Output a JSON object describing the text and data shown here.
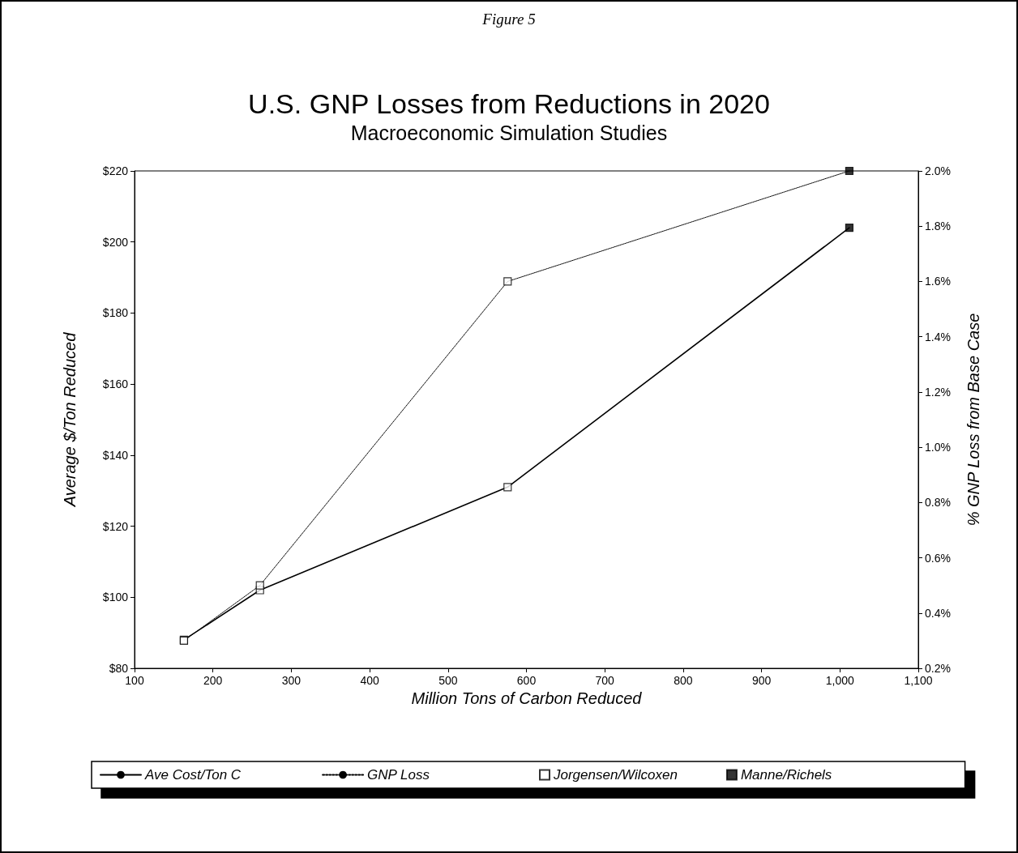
{
  "chart_data": {
    "type": "line",
    "title": "U.S. GNP Losses from Reductions in 2020",
    "subtitle": "Macroeconomic Simulation Studies",
    "annotations": [
      "Figure 5"
    ],
    "xlabel": "Million Tons of Carbon Reduced",
    "ylabel": "Average $/Ton Reduced",
    "y2label": "% GNP Loss from Base Case",
    "xlim": [
      100,
      1100
    ],
    "xticks": [
      100,
      200,
      300,
      400,
      500,
      600,
      700,
      800,
      900,
      {
        "value": 1000,
        "label": "1,000"
      },
      {
        "value": 1100,
        "label": "1,100"
      }
    ],
    "ylim": [
      80,
      220
    ],
    "yticks": [
      {
        "value": 80,
        "label": "$80"
      },
      {
        "value": 100,
        "label": "$100"
      },
      {
        "value": 120,
        "label": "$120"
      },
      {
        "value": 140,
        "label": "$140"
      },
      {
        "value": 160,
        "label": "$160"
      },
      {
        "value": 180,
        "label": "$180"
      },
      {
        "value": 200,
        "label": "$200"
      },
      {
        "value": 220,
        "label": "$220"
      }
    ],
    "y2lim": [
      0.2,
      2.0
    ],
    "y2ticks": [
      {
        "value": 0.2,
        "label": "0.2%"
      },
      {
        "value": 0.4,
        "label": "0.4%"
      },
      {
        "value": 0.6,
        "label": "0.6%"
      },
      {
        "value": 0.8,
        "label": "0.8%"
      },
      {
        "value": 1.0,
        "label": "1.0%"
      },
      {
        "value": 1.2,
        "label": "1.2%"
      },
      {
        "value": 1.4,
        "label": "1.4%"
      },
      {
        "value": 1.6,
        "label": "1.6%"
      },
      {
        "value": 1.8,
        "label": "1.8%"
      },
      {
        "value": 2.0,
        "label": "2.0%"
      }
    ],
    "grid": false,
    "legend": "bottom",
    "series": [
      {
        "name": "Ave Cost/Ton C",
        "color": "#000000",
        "x": [
          163,
          260,
          576,
          1012
        ],
        "values": [
          88,
          102,
          131,
          204
        ],
        "marker": "none",
        "line_style": "solid"
      },
      {
        "name": "GNP Loss",
        "color": "#000000",
        "x": [
          163,
          260,
          576,
          1012
        ],
        "values": [
          0.3,
          0.5,
          1.6,
          2.0
        ],
        "axis": "y2",
        "marker": "none",
        "line_style": "dotted"
      },
      {
        "name": "Jorgensen/Wilcoxen",
        "type": "scatter",
        "color": "#ffffff",
        "x": [
          163,
          260,
          576
        ],
        "values": [
          88,
          102,
          131
        ],
        "marker": "square"
      },
      {
        "type": "scatter",
        "color": "#ffffff",
        "x": [
          163,
          260,
          576
        ],
        "values": [
          0.3,
          0.5,
          1.6
        ],
        "axis": "y2",
        "marker": "square"
      },
      {
        "name": "Manne/Richels",
        "type": "scatter",
        "color": "#000000",
        "x": [
          1012
        ],
        "values": [
          204
        ],
        "marker": "square"
      },
      {
        "type": "scatter",
        "color": "#000000",
        "x": [
          1012
        ],
        "values": [
          2.0
        ],
        "axis": "y2",
        "marker": "square"
      }
    ]
  }
}
